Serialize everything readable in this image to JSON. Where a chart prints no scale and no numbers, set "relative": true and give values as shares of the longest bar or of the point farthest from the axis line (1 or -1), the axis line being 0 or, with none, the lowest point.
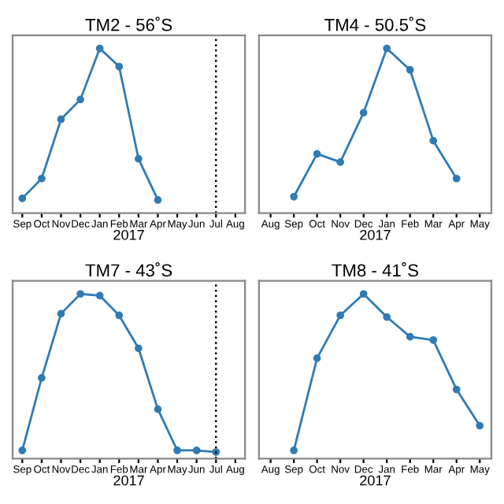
{
  "chart_data": [
    {
      "type": "line",
      "title": "TM2 - 56˚S",
      "xlabel": "2017",
      "relative": true,
      "marker": "circle",
      "line_style": "solid",
      "categories": [
        "Sep",
        "Oct",
        "Nov",
        "Dec",
        "Jan",
        "Feb",
        "Mar",
        "Apr",
        "May",
        "Jun",
        "Jul",
        "Aug"
      ],
      "series": [
        {
          "color": "#2f7bb5",
          "values": [
            0.09,
            0.21,
            0.57,
            0.69,
            1,
            0.89,
            0.33,
            0.08,
            null,
            null,
            null,
            null
          ]
        }
      ],
      "ref_lines": [
        {
          "axis": "x",
          "value": "Jul",
          "color": "#000000",
          "line_style": "dotted"
        }
      ]
    },
    {
      "type": "line",
      "title": "TM4 - 50.5˚S",
      "xlabel": "2017",
      "relative": true,
      "marker": "circle",
      "line_style": "solid",
      "categories": [
        "Aug",
        "Sep",
        "Oct",
        "Nov",
        "Dec",
        "Jan",
        "Feb",
        "Mar",
        "Apr",
        "May"
      ],
      "series": [
        {
          "color": "#2f7bb5",
          "values": [
            null,
            0.1,
            0.36,
            0.31,
            0.61,
            1,
            0.87,
            0.44,
            0.21,
            null
          ]
        }
      ]
    },
    {
      "type": "line",
      "title": "TM7 - 43˚S",
      "xlabel": "2017",
      "relative": true,
      "marker": "circle",
      "line_style": "solid",
      "categories": [
        "Sep",
        "Oct",
        "Nov",
        "Dec",
        "Jan",
        "Feb",
        "Mar",
        "Apr",
        "May",
        "Jun",
        "Jul",
        "Aug"
      ],
      "series": [
        {
          "color": "#2f7bb5",
          "values": [
            0.05,
            0.49,
            0.88,
            1,
            0.99,
            0.87,
            0.67,
            0.3,
            0.05,
            0.05,
            0.04,
            null
          ]
        }
      ],
      "ref_lines": [
        {
          "axis": "x",
          "value": "Jul",
          "color": "#000000",
          "line_style": "dotted"
        }
      ]
    },
    {
      "type": "line",
      "title": "TM8 - 41˚S",
      "xlabel": "2017",
      "relative": true,
      "marker": "circle",
      "line_style": "solid",
      "categories": [
        "Aug",
        "Sep",
        "Oct",
        "Nov",
        "Dec",
        "Jan",
        "Feb",
        "Mar",
        "Apr",
        "May"
      ],
      "series": [
        {
          "color": "#2f7bb5",
          "values": [
            null,
            0.05,
            0.61,
            0.87,
            1,
            0.86,
            0.74,
            0.72,
            0.42,
            0.2
          ]
        }
      ]
    }
  ]
}
